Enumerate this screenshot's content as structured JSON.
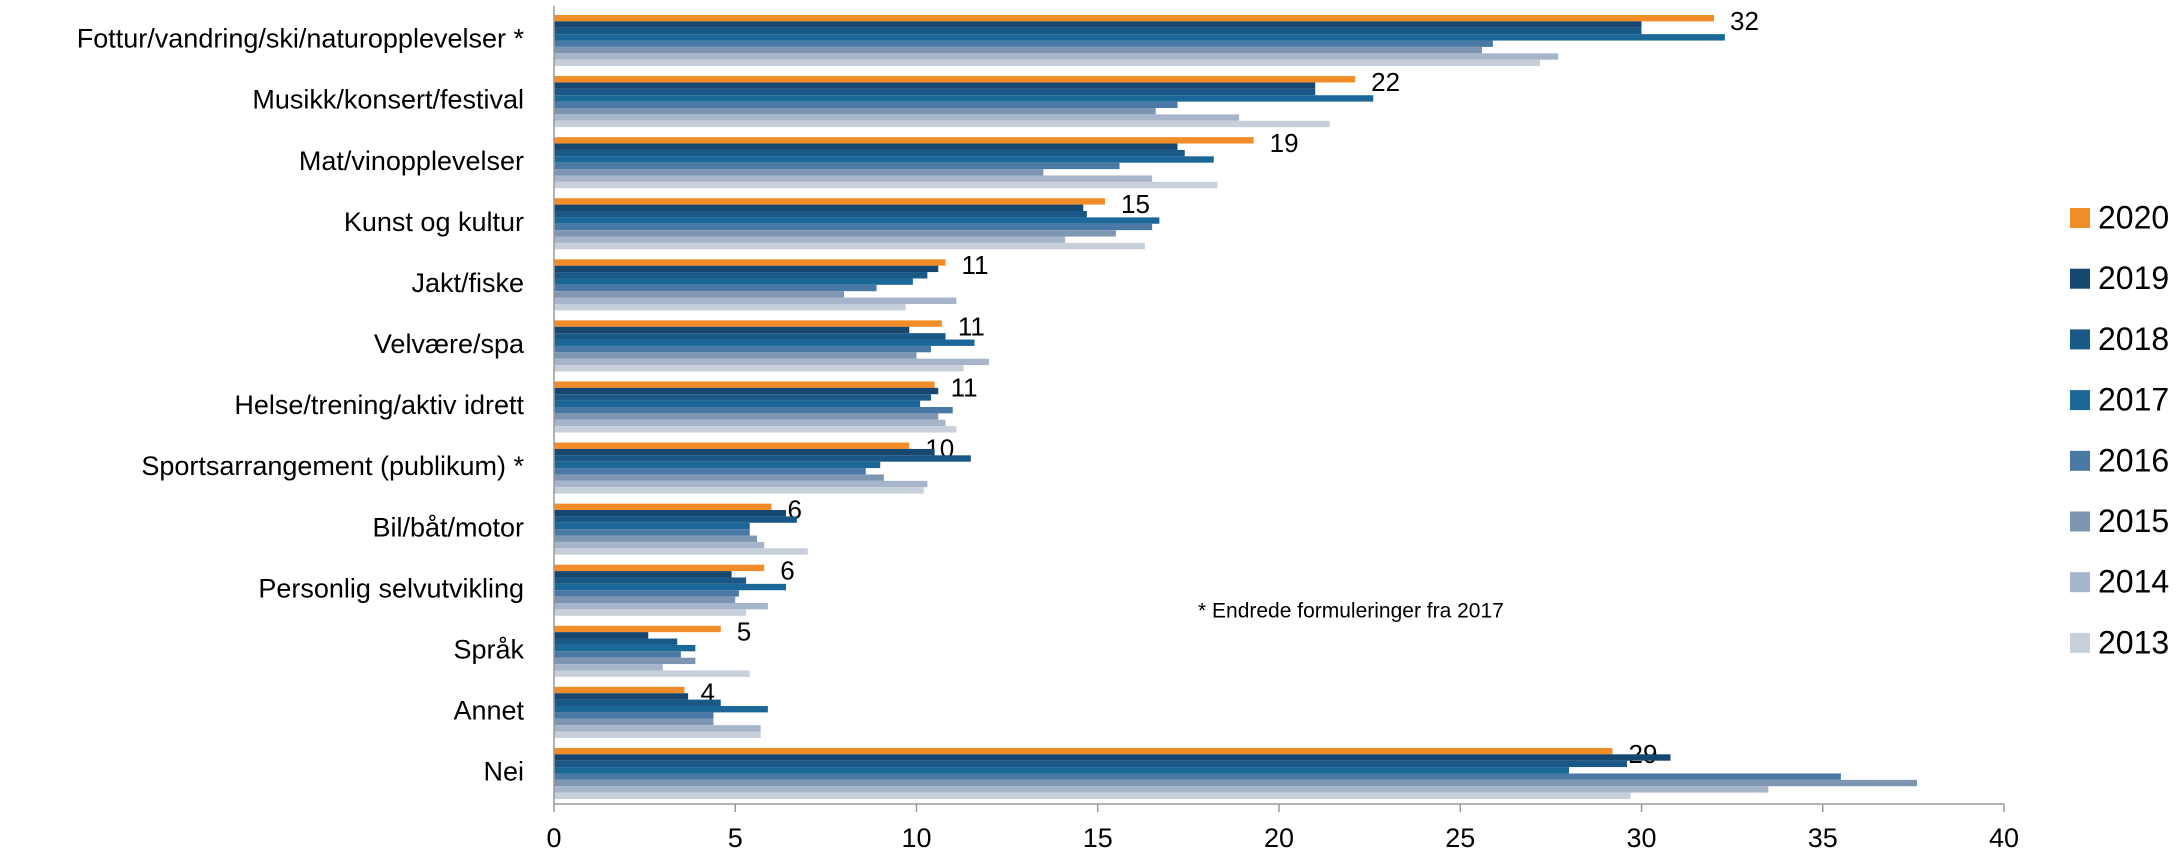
{
  "chart_data": {
    "type": "bar",
    "orientation": "horizontal",
    "categories": [
      "Fottur/vandring/ski/naturopplevelser *",
      "Musikk/konsert/festival",
      "Mat/vinopplevelser",
      "Kunst og kultur",
      "Jakt/fiske",
      "Velvære/spa",
      "Helse/trening/aktiv idrett",
      "Sportsarrangement (publikum) *",
      "Bil/båt/motor",
      "Personlig selvutvikling",
      "Språk",
      "Annet",
      "Nei"
    ],
    "series": [
      {
        "name": "2020",
        "color": "#f28c28",
        "values": [
          32.0,
          22.1,
          19.3,
          15.2,
          10.8,
          10.7,
          10.5,
          9.8,
          6.0,
          5.8,
          4.6,
          3.6,
          29.2
        ],
        "value_labels": [
          "32",
          "22",
          "19",
          "15",
          "11",
          "11",
          "11",
          "10",
          "6",
          "6",
          "5",
          "4",
          "29"
        ]
      },
      {
        "name": "2019",
        "color": "#17466e",
        "values": [
          30.0,
          21.0,
          17.2,
          14.6,
          10.6,
          9.8,
          10.6,
          10.5,
          6.4,
          4.9,
          2.6,
          3.7,
          30.8
        ]
      },
      {
        "name": "2018",
        "color": "#1a5887",
        "values": [
          30.0,
          21.0,
          17.4,
          14.7,
          10.3,
          10.8,
          10.4,
          11.5,
          6.7,
          5.3,
          3.4,
          4.6,
          29.6
        ]
      },
      {
        "name": "2017",
        "color": "#1b6898",
        "values": [
          32.3,
          22.6,
          18.2,
          16.7,
          9.9,
          11.6,
          10.1,
          9.0,
          5.4,
          6.4,
          3.9,
          5.9,
          28.0
        ]
      },
      {
        "name": "2016",
        "color": "#4a79a5",
        "values": [
          25.9,
          17.2,
          15.6,
          16.5,
          8.9,
          10.4,
          11.0,
          8.6,
          5.4,
          5.1,
          3.5,
          4.4,
          35.5
        ]
      },
      {
        "name": "2015",
        "color": "#7f96b3",
        "values": [
          25.6,
          16.6,
          13.5,
          15.5,
          8.0,
          10.0,
          10.6,
          9.1,
          5.6,
          5.0,
          3.9,
          4.4,
          37.6
        ]
      },
      {
        "name": "2014",
        "color": "#a6b5c9",
        "values": [
          27.7,
          18.9,
          16.5,
          14.1,
          11.1,
          12.0,
          10.8,
          10.3,
          5.8,
          5.9,
          3.0,
          5.7,
          33.5
        ]
      },
      {
        "name": "2013",
        "color": "#c7cfdb",
        "values": [
          27.2,
          21.4,
          18.3,
          16.3,
          9.7,
          11.3,
          11.1,
          10.2,
          7.0,
          5.3,
          5.4,
          5.7,
          29.7
        ]
      }
    ],
    "xlim": [
      0,
      40
    ],
    "xticks": [
      0,
      5,
      10,
      15,
      20,
      25,
      30,
      35,
      40
    ],
    "annotation": "* Endrede formuleringer fra 2017",
    "legend": "right"
  }
}
